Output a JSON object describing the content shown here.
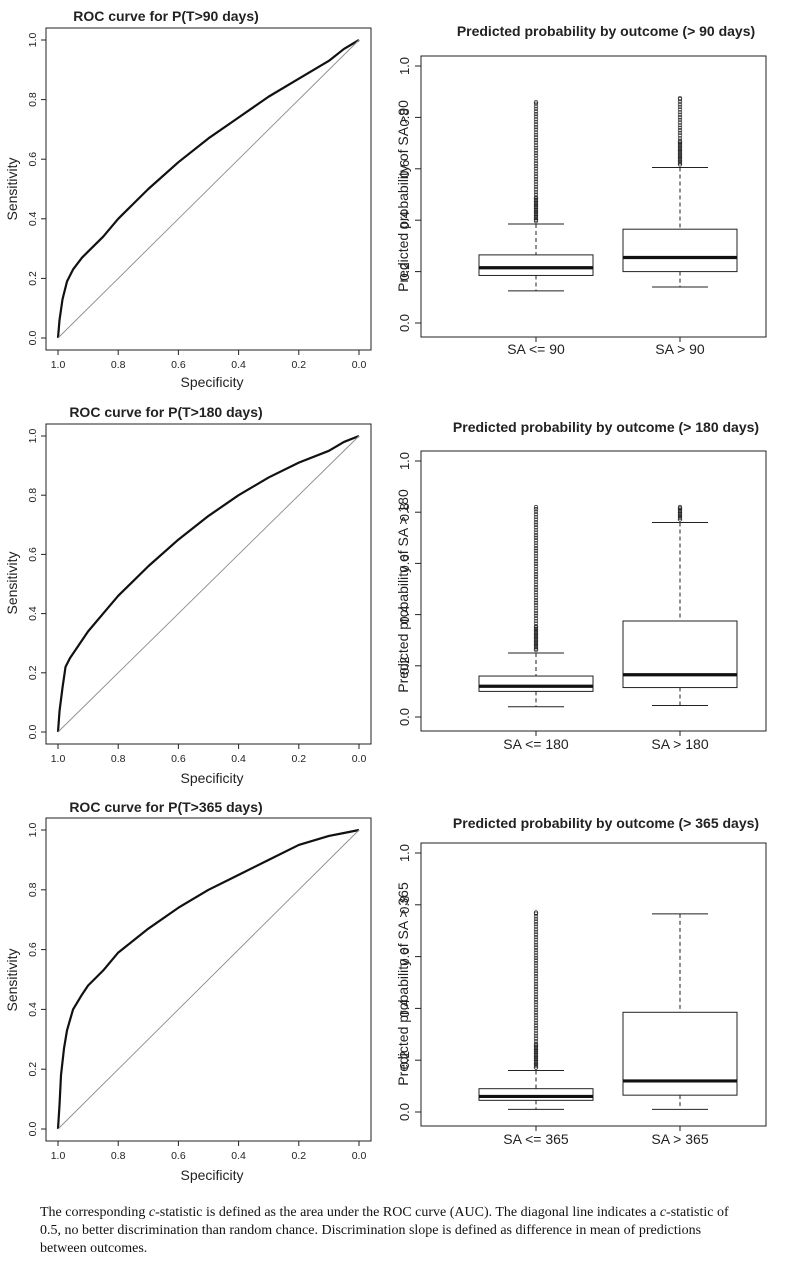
{
  "chart_data": [
    {
      "type": "line",
      "title": "ROC curve for P(T>90 days)",
      "xlabel": "Specificity",
      "ylabel": "Sensitivity",
      "xlim": [
        1.0,
        0.0
      ],
      "ylim": [
        0.0,
        1.0
      ],
      "x_reversed": true,
      "xticks": [
        "1.0",
        "0.8",
        "0.6",
        "0.4",
        "0.2",
        "0.0"
      ],
      "yticks": [
        "0.0",
        "0.2",
        "0.4",
        "0.6",
        "0.8",
        "1.0"
      ],
      "series": [
        {
          "specificity": [
            1.0,
            0.995,
            0.985,
            0.97,
            0.95,
            0.92,
            0.9,
            0.85,
            0.8,
            0.75,
            0.7,
            0.6,
            0.5,
            0.4,
            0.3,
            0.2,
            0.1,
            0.05,
            0.0
          ],
          "sensitivity": [
            0.0,
            0.06,
            0.13,
            0.19,
            0.23,
            0.27,
            0.29,
            0.34,
            0.4,
            0.45,
            0.5,
            0.59,
            0.67,
            0.74,
            0.81,
            0.87,
            0.93,
            0.97,
            1.0
          ]
        },
        {
          "specificity": [
            1.0,
            0.0
          ],
          "sensitivity": [
            0.0,
            1.0
          ],
          "style": "reference"
        }
      ]
    },
    {
      "type": "boxplot",
      "title": "Predicted probability by outcome (> 90 days)",
      "ylabel": "Predicted probability of SA >90",
      "ylim": [
        0.0,
        1.0
      ],
      "yticks": [
        "0.0",
        "0.2",
        "0.4",
        "0.6",
        "0.8",
        "1.0"
      ],
      "categories": [
        "SA <= 90",
        "SA > 90"
      ],
      "boxes": [
        {
          "min": 0.125,
          "q1": 0.185,
          "median": 0.215,
          "q3": 0.265,
          "whisker_hi": 0.385,
          "outlier_max": 0.86
        },
        {
          "min": 0.14,
          "q1": 0.2,
          "median": 0.255,
          "q3": 0.365,
          "whisker_hi": 0.605,
          "outlier_max": 0.875
        }
      ]
    },
    {
      "type": "line",
      "title": "ROC curve for P(T>180 days)",
      "xlabel": "Specificity",
      "ylabel": "Sensitivity",
      "xlim": [
        1.0,
        0.0
      ],
      "ylim": [
        0.0,
        1.0
      ],
      "x_reversed": true,
      "xticks": [
        "1.0",
        "0.8",
        "0.6",
        "0.4",
        "0.2",
        "0.0"
      ],
      "yticks": [
        "0.0",
        "0.2",
        "0.4",
        "0.6",
        "0.8",
        "1.0"
      ],
      "series": [
        {
          "specificity": [
            1.0,
            0.995,
            0.985,
            0.975,
            0.96,
            0.94,
            0.9,
            0.85,
            0.8,
            0.75,
            0.7,
            0.6,
            0.5,
            0.4,
            0.3,
            0.2,
            0.1,
            0.05,
            0.0
          ],
          "sensitivity": [
            0.0,
            0.07,
            0.15,
            0.22,
            0.25,
            0.28,
            0.34,
            0.4,
            0.46,
            0.51,
            0.56,
            0.65,
            0.73,
            0.8,
            0.86,
            0.91,
            0.95,
            0.98,
            1.0
          ]
        },
        {
          "specificity": [
            1.0,
            0.0
          ],
          "sensitivity": [
            0.0,
            1.0
          ],
          "style": "reference"
        }
      ]
    },
    {
      "type": "boxplot",
      "title": "Predicted probability by outcome (> 180 days)",
      "ylabel": "Predicted probability of SA > 180",
      "ylim": [
        0.0,
        1.0
      ],
      "yticks": [
        "0.0",
        "0.2",
        "0.4",
        "0.6",
        "0.8",
        "1.0"
      ],
      "categories": [
        "SA <= 180",
        "SA > 180"
      ],
      "boxes": [
        {
          "min": 0.04,
          "q1": 0.1,
          "median": 0.12,
          "q3": 0.16,
          "whisker_hi": 0.25,
          "outlier_max": 0.82
        },
        {
          "min": 0.045,
          "q1": 0.115,
          "median": 0.165,
          "q3": 0.375,
          "whisker_hi": 0.76,
          "outlier_max": 0.82
        }
      ]
    },
    {
      "type": "line",
      "title": "ROC curve for P(T>365 days)",
      "xlabel": "Specificity",
      "ylabel": "Sensitivity",
      "xlim": [
        1.0,
        0.0
      ],
      "ylim": [
        0.0,
        1.0
      ],
      "x_reversed": true,
      "xticks": [
        "1.0",
        "0.8",
        "0.6",
        "0.4",
        "0.2",
        "0.0"
      ],
      "yticks": [
        "0.0",
        "0.2",
        "0.4",
        "0.6",
        "0.8",
        "1.0"
      ],
      "series": [
        {
          "specificity": [
            1.0,
            0.995,
            0.99,
            0.98,
            0.97,
            0.95,
            0.92,
            0.9,
            0.85,
            0.8,
            0.75,
            0.7,
            0.6,
            0.5,
            0.4,
            0.3,
            0.2,
            0.1,
            0.05,
            0.0
          ],
          "sensitivity": [
            0.0,
            0.08,
            0.18,
            0.27,
            0.33,
            0.4,
            0.45,
            0.48,
            0.53,
            0.59,
            0.63,
            0.67,
            0.74,
            0.8,
            0.85,
            0.9,
            0.95,
            0.98,
            0.99,
            1.0
          ]
        },
        {
          "specificity": [
            1.0,
            0.0
          ],
          "sensitivity": [
            0.0,
            1.0
          ],
          "style": "reference"
        }
      ]
    },
    {
      "type": "boxplot",
      "title": "Predicted probability by outcome (> 365 days)",
      "ylabel": "Predicted probability of SA > 365",
      "ylim": [
        0.0,
        1.0
      ],
      "yticks": [
        "0.0",
        "0.2",
        "0.4",
        "0.6",
        "0.8",
        "1.0"
      ],
      "categories": [
        "SA <= 365",
        "SA > 365"
      ],
      "boxes": [
        {
          "min": 0.01,
          "q1": 0.045,
          "median": 0.06,
          "q3": 0.09,
          "whisker_hi": 0.16,
          "outlier_max": 0.77
        },
        {
          "min": 0.01,
          "q1": 0.065,
          "median": 0.12,
          "q3": 0.385,
          "whisker_hi": 0.765,
          "outlier_max": null
        }
      ]
    }
  ],
  "caption": {
    "p1": "The corresponding ",
    "c1": "c",
    "p2": "-statistic is defined as the area under the ROC curve (AUC). The diagonal line indicates a ",
    "c2": "c",
    "p3": "-statistic of 0.5, no better discrimination than random chance. Discrimination slope is defined as difference in mean of predictions between outcomes."
  }
}
